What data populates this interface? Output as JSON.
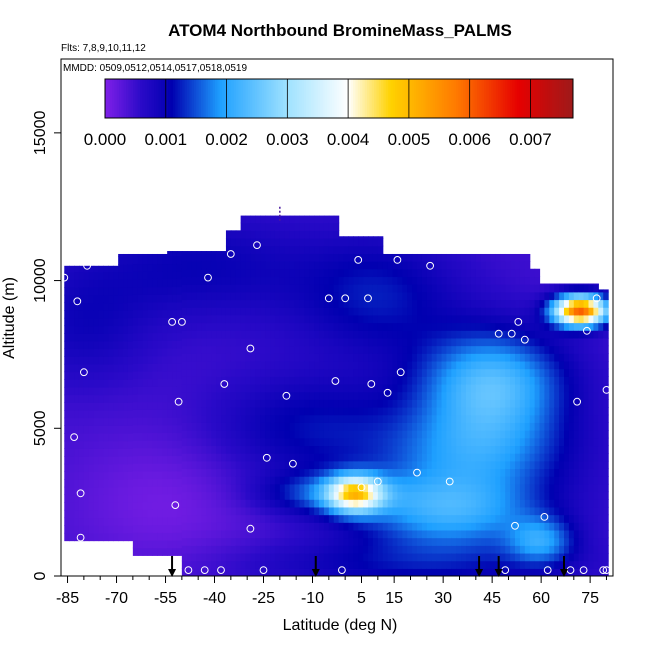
{
  "chart_data": {
    "type": "heatmap",
    "title": "ATOM4 Northbound BromineMass_PALMS",
    "subtitle_lines": [
      "Flts: 7,8,9,10,11,12",
      "MMDD: 0509,0512,0514,0517,0518,0519"
    ],
    "xlabel": "Latitude (deg N)",
    "ylabel": "Altitude (m)",
    "xlim": [
      -87,
      82
    ],
    "ylim": [
      0,
      17500
    ],
    "x_ticks": [
      "-85",
      "-70",
      "-55",
      "-40",
      "-25",
      "-10",
      "5",
      "15",
      "30",
      "45",
      "60",
      "75"
    ],
    "x_tick_values": [
      -85,
      -70,
      -55,
      -40,
      -25,
      -10,
      5,
      15,
      30,
      45,
      60,
      75
    ],
    "y_ticks": [
      "0",
      "5000",
      "10000",
      "15000"
    ],
    "y_tick_values": [
      0,
      5000,
      10000,
      15000
    ],
    "colorbar": {
      "labels": [
        "0.000",
        "0.001",
        "0.002",
        "0.003",
        "0.004",
        "0.005",
        "0.006",
        "0.007"
      ],
      "label_values": [
        0,
        0.001,
        0.002,
        0.003,
        0.004,
        0.005,
        0.006,
        0.007
      ],
      "range": [
        0,
        0.0077
      ],
      "stops": [
        {
          "v": 0.0,
          "color": "#8020e8"
        },
        {
          "v": 0.0006,
          "color": "#2a0ac8"
        },
        {
          "v": 0.0011,
          "color": "#0000b0"
        },
        {
          "v": 0.0019,
          "color": "#1ea0ff"
        },
        {
          "v": 0.003,
          "color": "#9fe2ff"
        },
        {
          "v": 0.004,
          "color": "#ffffff"
        },
        {
          "v": 0.0047,
          "color": "#ffd200"
        },
        {
          "v": 0.0058,
          "color": "#ff7800"
        },
        {
          "v": 0.0068,
          "color": "#e60000"
        },
        {
          "v": 0.0077,
          "color": "#9e1a1a"
        }
      ]
    },
    "arrow_latitudes": [
      -53,
      -9,
      41,
      47,
      67
    ],
    "top_marker": {
      "latitude": -20,
      "altitude": 12500
    },
    "observation_points": [
      [
        -86,
        10100
      ],
      [
        -82,
        9300
      ],
      [
        -79,
        10500
      ],
      [
        -80,
        6900
      ],
      [
        -83,
        4700
      ],
      [
        -81,
        2800
      ],
      [
        -81,
        1300
      ],
      [
        -53,
        8600
      ],
      [
        -50,
        8600
      ],
      [
        -51,
        5900
      ],
      [
        -52,
        2400
      ],
      [
        -48,
        200
      ],
      [
        -43,
        200
      ],
      [
        -38,
        200
      ],
      [
        -42,
        10100
      ],
      [
        -35,
        10900
      ],
      [
        -37,
        6500
      ],
      [
        -29,
        7700
      ],
      [
        -29,
        1600
      ],
      [
        -27,
        11200
      ],
      [
        -25,
        200
      ],
      [
        -24,
        4000
      ],
      [
        -18,
        6100
      ],
      [
        -16,
        3800
      ],
      [
        -5,
        9400
      ],
      [
        -3,
        6600
      ],
      [
        0,
        9400
      ],
      [
        -1,
        200
      ],
      [
        4,
        10700
      ],
      [
        5,
        3000
      ],
      [
        7,
        9400
      ],
      [
        8,
        6500
      ],
      [
        10,
        3200
      ],
      [
        13,
        6200
      ],
      [
        16,
        10700
      ],
      [
        17,
        6900
      ],
      [
        22,
        3500
      ],
      [
        26,
        10500
      ],
      [
        32,
        3200
      ],
      [
        47,
        8200
      ],
      [
        51,
        8200
      ],
      [
        53,
        8600
      ],
      [
        55,
        8000
      ],
      [
        52,
        1700
      ],
      [
        49,
        200
      ],
      [
        61,
        2000
      ],
      [
        63,
        10500
      ],
      [
        62,
        200
      ],
      [
        71,
        5900
      ],
      [
        73,
        200
      ],
      [
        74,
        8300
      ],
      [
        77,
        9400
      ],
      [
        80,
        6300
      ],
      [
        79,
        200
      ],
      [
        80,
        200
      ],
      [
        69,
        200
      ]
    ]
  }
}
